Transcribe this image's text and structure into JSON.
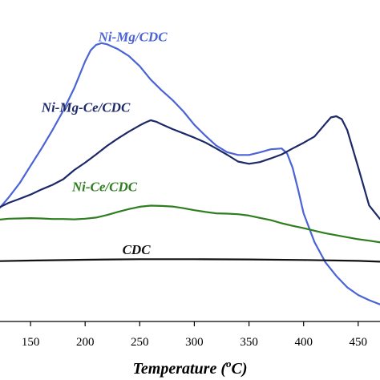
{
  "chart_data": {
    "type": "line",
    "xlabel": "Temperature (°C)",
    "xlabel_parts": {
      "prefix": "Temperature (",
      "sup_o": "o",
      "suffix": "C)"
    },
    "ylabel": "",
    "xlim": [
      122,
      470
    ],
    "ylim": [
      0,
      1000
    ],
    "x_ticks": [
      150,
      200,
      250,
      300,
      350,
      400,
      450
    ],
    "x_tick_labels": [
      "150",
      "200",
      "250",
      "300",
      "350",
      "400",
      "450"
    ],
    "grid": false,
    "legend": "inline labels",
    "series": [
      {
        "name": "Ni-Mg/CDC",
        "color": "#4a63d6",
        "x": [
          122,
          130,
          140,
          150,
          160,
          170,
          180,
          190,
          200,
          205,
          210,
          215,
          220,
          230,
          240,
          250,
          260,
          270,
          280,
          290,
          300,
          310,
          320,
          330,
          340,
          350,
          360,
          370,
          380,
          385,
          390,
          395,
          400,
          410,
          420,
          430,
          440,
          450,
          460,
          470
        ],
        "y": [
          400,
          436,
          486,
          547,
          608,
          672,
          741,
          820,
          914,
          953,
          972,
          978,
          974,
          957,
          933,
          897,
          850,
          812,
          778,
          738,
          691,
          653,
          618,
          595,
          585,
          585,
          594,
          605,
          608,
          590,
          540,
          464,
          380,
          279,
          208,
          160,
          120,
          93,
          75,
          60
        ]
      },
      {
        "name": "Ni-Mg-Ce/CDC",
        "color": "#1c2868",
        "x": [
          122,
          130,
          140,
          150,
          160,
          170,
          180,
          190,
          200,
          210,
          220,
          230,
          240,
          250,
          255,
          260,
          265,
          270,
          280,
          290,
          300,
          310,
          320,
          330,
          340,
          350,
          360,
          370,
          380,
          390,
          400,
          410,
          420,
          425,
          430,
          435,
          440,
          450,
          460,
          470
        ],
        "y": [
          402,
          417,
          431,
          446,
          464,
          480,
          500,
          532,
          558,
          587,
          617,
          643,
          667,
          689,
          699,
          707,
          702,
          693,
          676,
          661,
          646,
          629,
          608,
          586,
          562,
          554,
          560,
          573,
          587,
          608,
          628,
          650,
          695,
          717,
          721,
          711,
          673,
          542,
          408,
          360
        ]
      },
      {
        "name": "Ni-Ce/CDC",
        "color": "#2e7d1f",
        "x": [
          122,
          130,
          140,
          150,
          160,
          170,
          180,
          190,
          200,
          210,
          220,
          230,
          240,
          250,
          260,
          270,
          280,
          290,
          300,
          310,
          320,
          330,
          340,
          350,
          360,
          370,
          380,
          390,
          400,
          410,
          420,
          430,
          440,
          450,
          460,
          470
        ],
        "y": [
          358,
          361,
          362,
          363,
          362,
          360,
          360,
          359,
          361,
          365,
          374,
          385,
          395,
          403,
          407,
          406,
          404,
          398,
          391,
          385,
          380,
          379,
          377,
          372,
          364,
          356,
          345,
          336,
          328,
          319,
          310,
          303,
          296,
          289,
          284,
          278
        ]
      },
      {
        "name": "CDC",
        "color": "#111111",
        "x": [
          122,
          150,
          200,
          250,
          300,
          350,
          400,
          450,
          470
        ],
        "y": [
          212,
          214,
          217,
          219,
          219,
          218,
          216,
          213,
          210
        ]
      }
    ],
    "annotations": [
      {
        "text": "Ni-Mg/CDC",
        "x": 212,
        "y": 984,
        "color": "#4a63d6"
      },
      {
        "text": "Ni-Mg-Ce/CDC",
        "x": 160,
        "y": 736,
        "color": "#1c2868"
      },
      {
        "text": "Ni-Ce/CDC",
        "x": 188,
        "y": 458,
        "color": "#2e7d1f"
      },
      {
        "text": "CDC",
        "x": 234,
        "y": 236,
        "color": "#111111"
      }
    ]
  }
}
